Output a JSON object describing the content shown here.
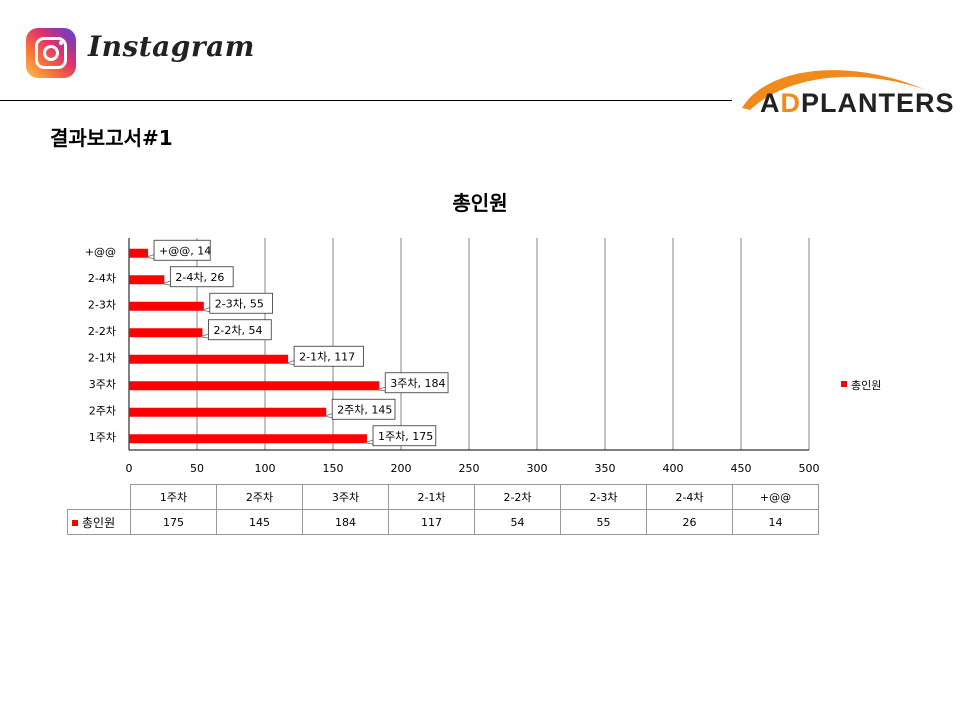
{
  "header": {
    "instagram_word": "Instagram",
    "brand_prefix_left": "A",
    "brand_prefix_o": "D",
    "brand_rest": "PLANTERS",
    "page_title": "결과보고서#1"
  },
  "colors": {
    "bar": "#ff0000",
    "grid": "#868686",
    "brand_orange": "#f08a1c"
  },
  "chart_data": {
    "type": "bar",
    "orientation": "horizontal",
    "title": "총인원",
    "categories": [
      "1주차",
      "2주차",
      "3주차",
      "2-1차",
      "2-2차",
      "2-3차",
      "2-4차",
      "+@@"
    ],
    "series": [
      {
        "name": "총인원",
        "values": [
          175,
          145,
          184,
          117,
          54,
          55,
          26,
          14
        ]
      }
    ],
    "xlim": [
      0,
      500
    ],
    "xticks": [
      0,
      50,
      100,
      150,
      200,
      250,
      300,
      350,
      400,
      450,
      500
    ],
    "data_labels": [
      "1주차, 175",
      "2주차, 145",
      "3주차, 184",
      "2-1차, 117",
      "2-2차, 54",
      "2-3차, 55",
      "2-4차, 26",
      "+@@, 14"
    ],
    "grid": true,
    "legend": "right"
  }
}
